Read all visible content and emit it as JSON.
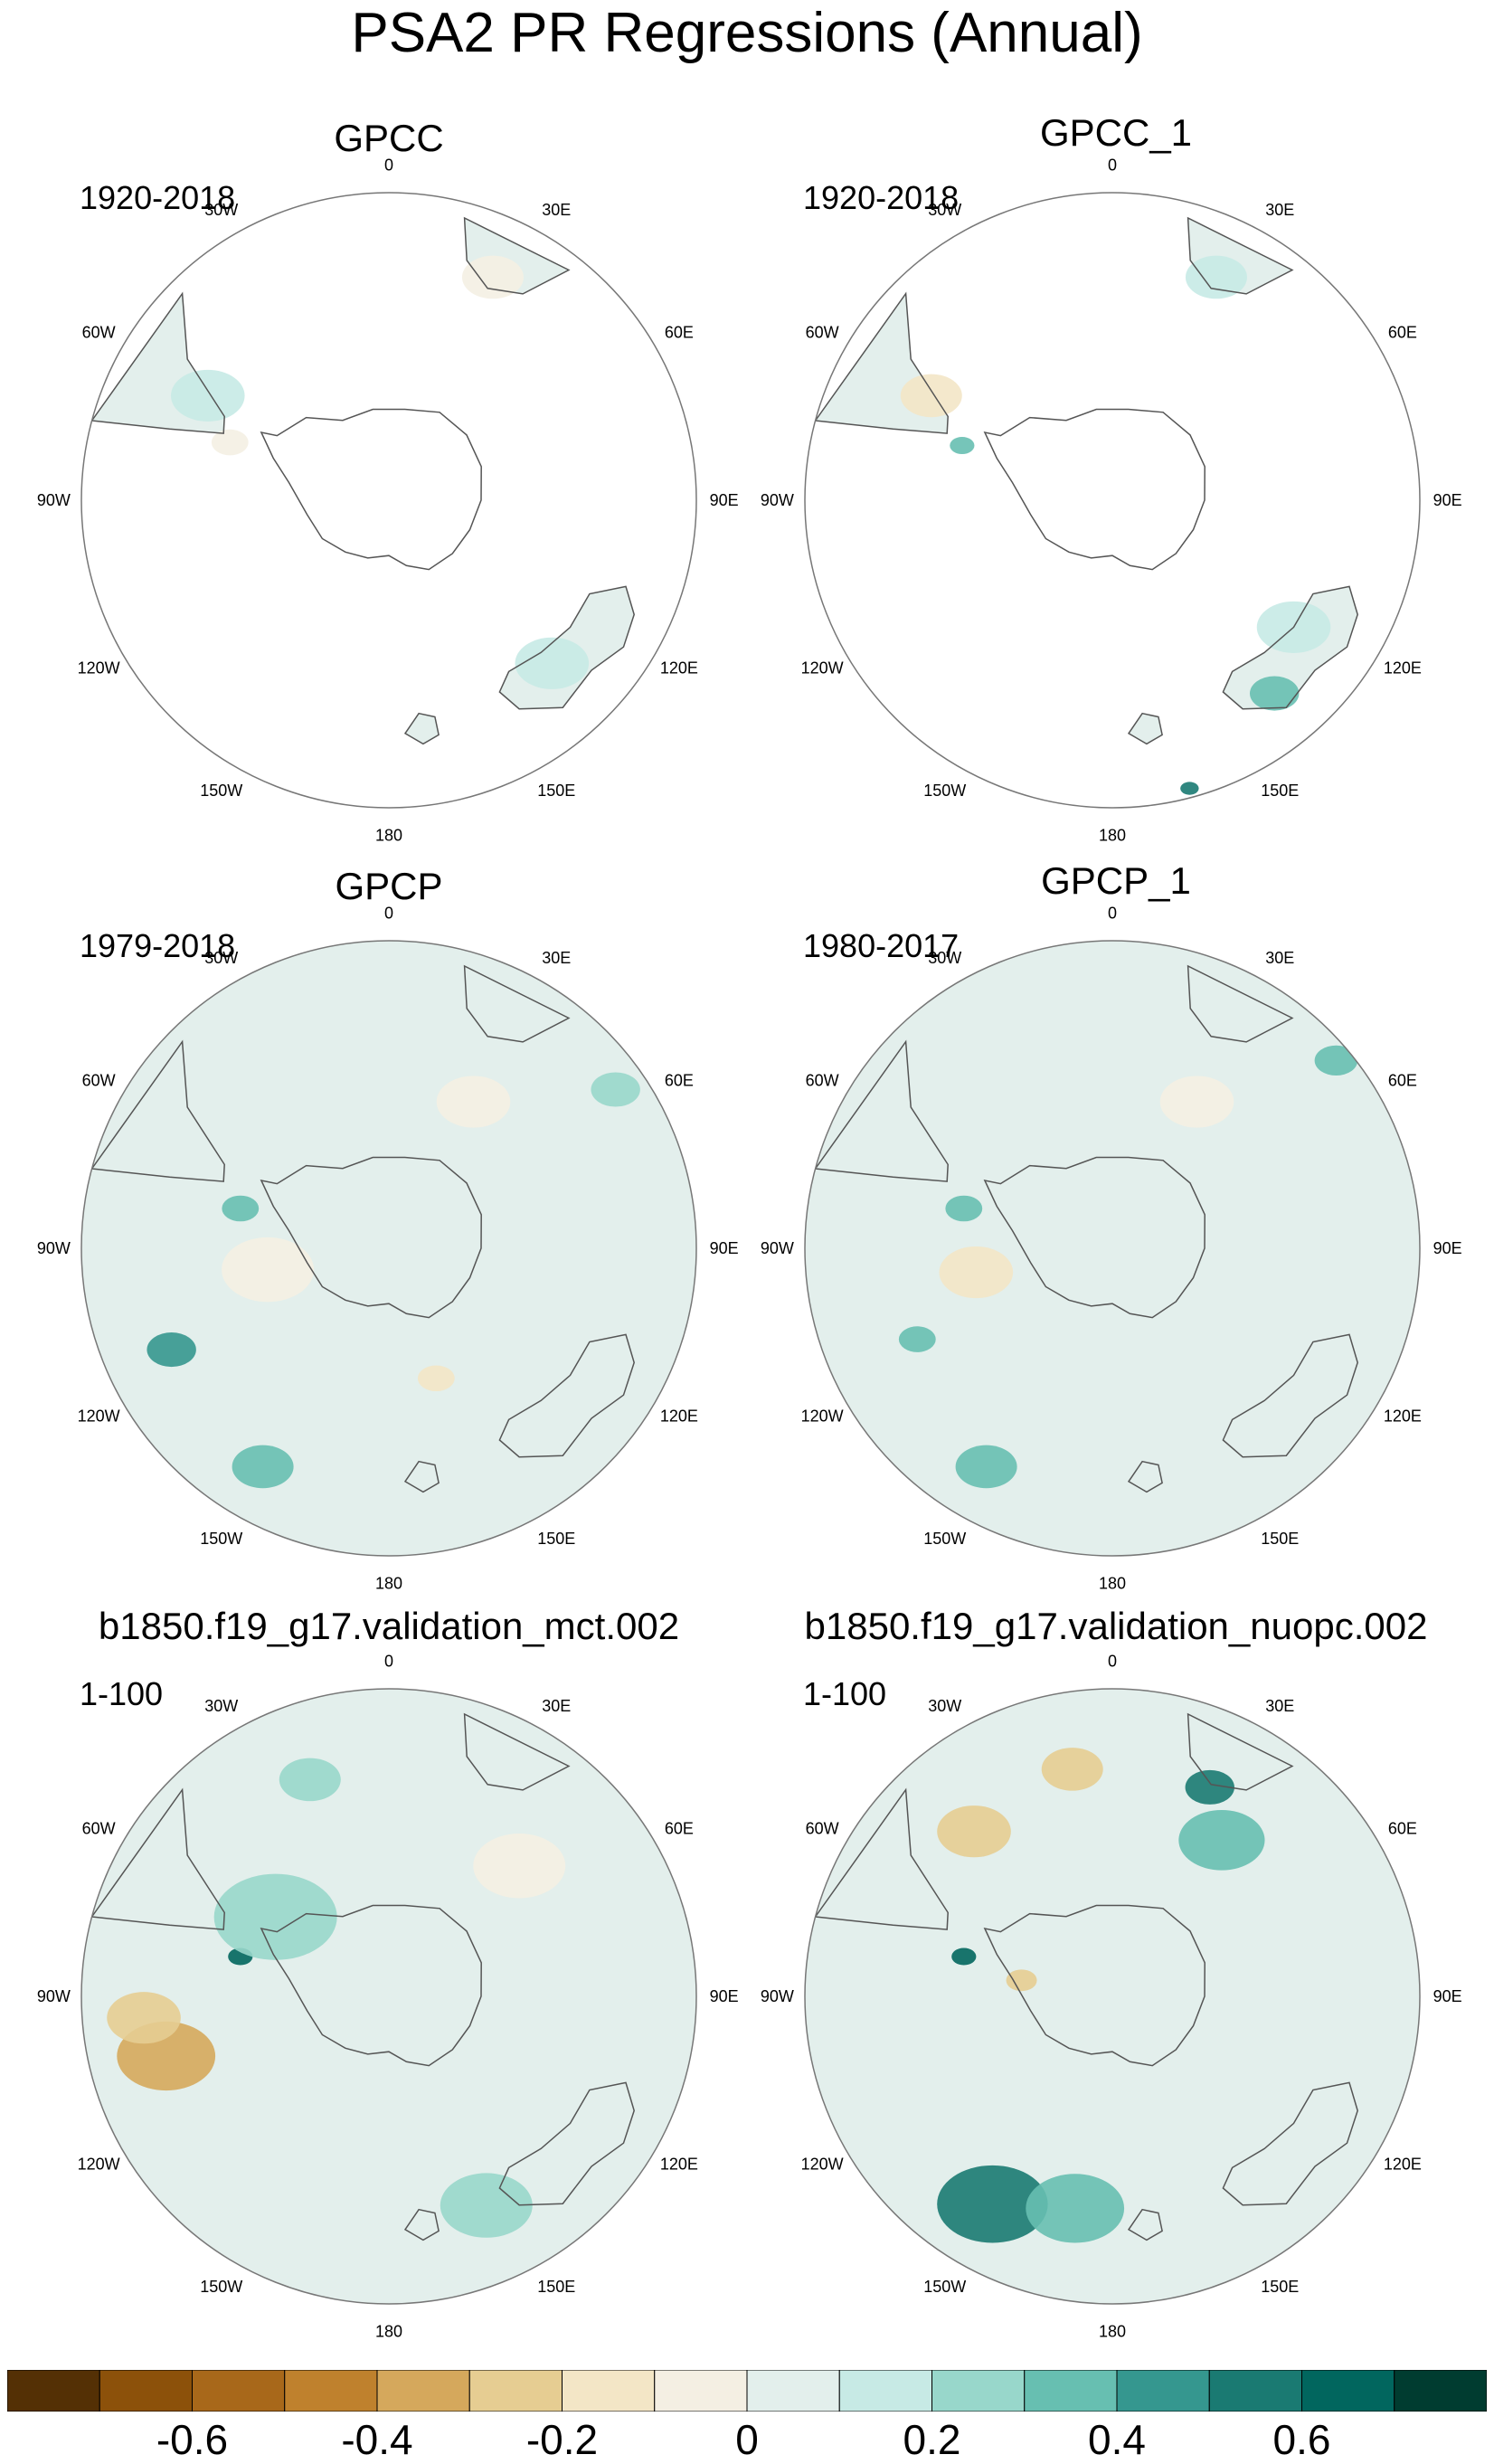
{
  "title": "PSA2 PR Regressions (Annual)",
  "panels": [
    {
      "name": "GPCC",
      "period": "1920-2018",
      "coverage": "land",
      "features": [
        {
          "lon": -60,
          "r": 0.68,
          "v": 0.1,
          "size": 0.12
        },
        {
          "lon": -70,
          "r": 0.55,
          "v": -0.1,
          "size": 0.06
        },
        {
          "lon": 135,
          "r": 0.75,
          "v": 0.1,
          "size": 0.12
        },
        {
          "lon": 25,
          "r": 0.8,
          "v": -0.1,
          "size": 0.1
        }
      ]
    },
    {
      "name": "GPCC_1",
      "period": "1920-2018",
      "coverage": "land",
      "features": [
        {
          "lon": -60,
          "r": 0.68,
          "v": -0.2,
          "size": 0.1
        },
        {
          "lon": -70,
          "r": 0.52,
          "v": 0.3,
          "size": 0.04
        },
        {
          "lon": 140,
          "r": 0.82,
          "v": 0.3,
          "size": 0.08
        },
        {
          "lon": 125,
          "r": 0.72,
          "v": 0.1,
          "size": 0.12
        },
        {
          "lon": 165,
          "r": 0.97,
          "v": 0.5,
          "size": 0.03
        },
        {
          "lon": 25,
          "r": 0.8,
          "v": 0.1,
          "size": 0.1
        }
      ]
    },
    {
      "name": "GPCP",
      "period": "1979-2018",
      "coverage": "full",
      "features": [
        {
          "lon": -115,
          "r": 0.78,
          "v": 0.4,
          "size": 0.08
        },
        {
          "lon": -150,
          "r": 0.82,
          "v": 0.3,
          "size": 0.1
        },
        {
          "lon": 55,
          "r": 0.9,
          "v": 0.2,
          "size": 0.08
        },
        {
          "lon": -75,
          "r": 0.5,
          "v": 0.3,
          "size": 0.06
        },
        {
          "lon": 160,
          "r": 0.45,
          "v": -0.2,
          "size": 0.06
        },
        {
          "lon": -100,
          "r": 0.4,
          "v": -0.1,
          "size": 0.15
        },
        {
          "lon": 30,
          "r": 0.55,
          "v": -0.1,
          "size": 0.12
        }
      ]
    },
    {
      "name": "GPCP_1",
      "period": "1980-2017",
      "coverage": "full",
      "features": [
        {
          "lon": -115,
          "r": 0.7,
          "v": 0.3,
          "size": 0.06
        },
        {
          "lon": -150,
          "r": 0.82,
          "v": 0.3,
          "size": 0.1
        },
        {
          "lon": 50,
          "r": 0.95,
          "v": 0.3,
          "size": 0.07
        },
        {
          "lon": -75,
          "r": 0.5,
          "v": 0.3,
          "size": 0.06
        },
        {
          "lon": -100,
          "r": 0.45,
          "v": -0.2,
          "size": 0.12
        },
        {
          "lon": 30,
          "r": 0.55,
          "v": -0.1,
          "size": 0.12
        }
      ]
    },
    {
      "name": "b1850.f19_g17.validation_mct.002",
      "period": "1-100",
      "coverage": "full",
      "features": [
        {
          "lon": -105,
          "r": 0.75,
          "v": -0.4,
          "size": 0.16
        },
        {
          "lon": -95,
          "r": 0.8,
          "v": -0.3,
          "size": 0.12
        },
        {
          "lon": -75,
          "r": 0.5,
          "v": 0.6,
          "size": 0.04
        },
        {
          "lon": -55,
          "r": 0.45,
          "v": 0.2,
          "size": 0.2
        },
        {
          "lon": 155,
          "r": 0.75,
          "v": 0.2,
          "size": 0.15
        },
        {
          "lon": 45,
          "r": 0.6,
          "v": -0.1,
          "size": 0.15
        },
        {
          "lon": -20,
          "r": 0.75,
          "v": 0.2,
          "size": 0.1
        }
      ]
    },
    {
      "name": "b1850.f19_g17.validation_nuopc.002",
      "period": "1-100",
      "coverage": "full",
      "features": [
        {
          "lon": -150,
          "r": 0.78,
          "v": 0.5,
          "size": 0.18
        },
        {
          "lon": -170,
          "r": 0.7,
          "v": 0.3,
          "size": 0.16
        },
        {
          "lon": -40,
          "r": 0.7,
          "v": -0.3,
          "size": 0.12
        },
        {
          "lon": -10,
          "r": 0.75,
          "v": -0.3,
          "size": 0.1
        },
        {
          "lon": 25,
          "r": 0.75,
          "v": 0.5,
          "size": 0.08
        },
        {
          "lon": 35,
          "r": 0.62,
          "v": 0.3,
          "size": 0.14
        },
        {
          "lon": -75,
          "r": 0.5,
          "v": 0.6,
          "size": 0.04
        },
        {
          "lon": -80,
          "r": 0.3,
          "v": -0.3,
          "size": 0.05
        }
      ]
    }
  ],
  "lon_labels": [
    "0",
    "30E",
    "60E",
    "90E",
    "120E",
    "150E",
    "180",
    "150W",
    "120W",
    "90W",
    "60W",
    "30W"
  ],
  "colorbar": {
    "levels": [
      -0.7,
      -0.6,
      -0.5,
      -0.4,
      -0.3,
      -0.2,
      -0.1,
      0,
      0.1,
      0.2,
      0.3,
      0.4,
      0.5,
      0.6,
      0.7
    ],
    "colors": [
      "#543005",
      "#8c510a",
      "#a8681a",
      "#bf812d",
      "#d5a85c",
      "#e6cd92",
      "#f3e6c6",
      "#f4efe3",
      "#e3efec",
      "#c7eae5",
      "#98d7cb",
      "#67bfb1",
      "#35978f",
      "#1a7a72",
      "#01665e",
      "#003c30"
    ],
    "tick_labels": [
      "-0.6",
      "-0.4",
      "-0.2",
      "0",
      "0.2",
      "0.4",
      "0.6"
    ]
  }
}
